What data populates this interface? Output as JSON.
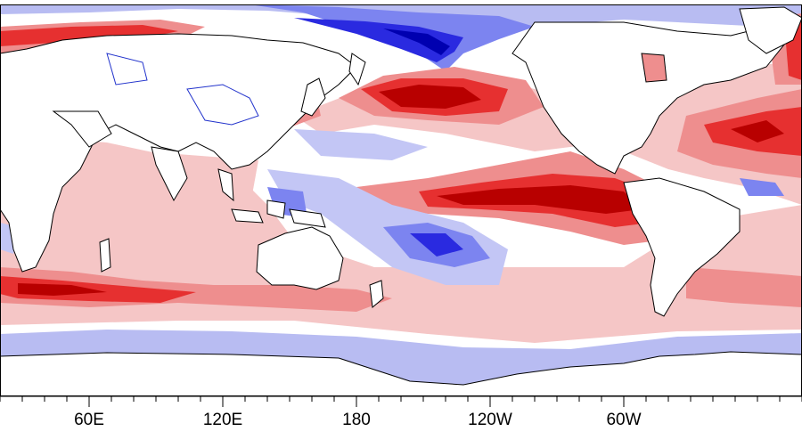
{
  "map": {
    "projection": "cylindrical-equidistant",
    "longitude_ticks": [
      {
        "label": "60E",
        "lon": 60
      },
      {
        "label": "120E",
        "lon": 120
      },
      {
        "label": "180",
        "lon": 180
      },
      {
        "label": "120W",
        "lon": 240
      },
      {
        "label": "60W",
        "lon": 300
      }
    ],
    "colors": {
      "ocean_neutral": "#ffffff",
      "land": "#ffffff",
      "coastline": "#000000",
      "lakes": "#2233cc",
      "sea_ice_mask": "#b8bcf2",
      "warm_1": "#f5c6c6",
      "warm_2": "#ee8e8e",
      "warm_3": "#e63030",
      "warm_4": "#b80000",
      "cool_1": "#c3c6f5",
      "cool_2": "#7c84f0",
      "cool_3": "#2a2ae0",
      "cool_4": "#0000b0"
    }
  }
}
